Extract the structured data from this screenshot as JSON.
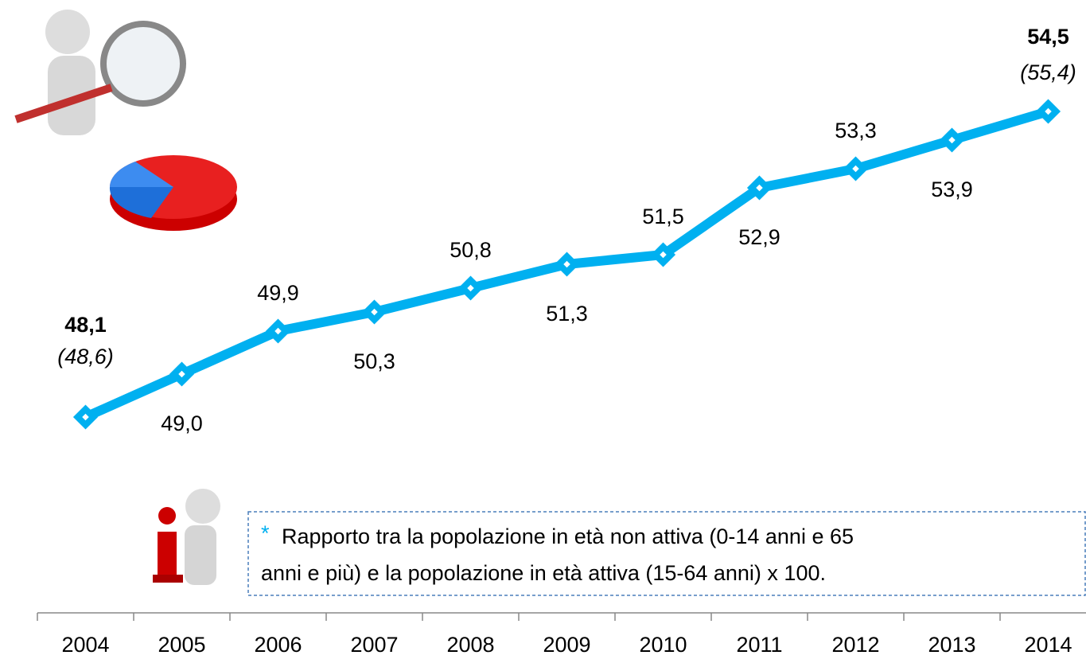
{
  "chart_data": {
    "type": "line",
    "categories": [
      "2004",
      "2005",
      "2006",
      "2007",
      "2008",
      "2009",
      "2010",
      "2011",
      "2012",
      "2013",
      "2014"
    ],
    "series": [
      {
        "color": "#00b0f0",
        "values": [
          48.1,
          49.0,
          49.9,
          50.3,
          50.8,
          51.3,
          51.5,
          52.9,
          53.3,
          53.9,
          54.5
        ],
        "value_labels": [
          "48,1",
          "49,0",
          "49,9",
          "50,3",
          "50,8",
          "51,3",
          "51,5",
          "52,9",
          "53,3",
          "53,9",
          "54,5"
        ]
      }
    ],
    "annotations": [
      "(48,6)",
      "(55,4)"
    ],
    "ylim": [
      47,
      55.5
    ],
    "note_marker": "*",
    "note_lines": [
      "Rapporto tra la popolazione in età non attiva (0-14 anni e 65",
      "anni e più) e la popolazione in età attiva (15-64 anni) x 100."
    ]
  }
}
